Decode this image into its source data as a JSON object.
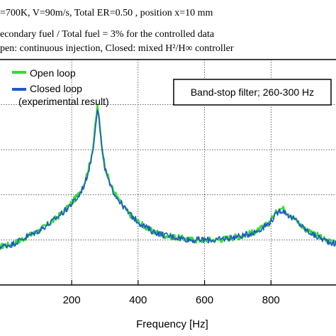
{
  "header_lines": [
    "=700K, V=90m/s, Total ER=0.50 , position x=10 mm",
    "econdary fuel / Total fuel = 3% for the controlled data",
    "pen:  continuous injection, Closed:  mixed H²/H∞ controller"
  ],
  "chart_data": {
    "type": "line",
    "title": "",
    "xlabel": "Frequency [Hz]",
    "ylabel": "",
    "xlim": [
      -20,
      1000
    ],
    "ylim": [
      0,
      1
    ],
    "xticks": [
      200,
      400,
      600,
      800
    ],
    "grid": true,
    "legend": {
      "placement": "top-left",
      "entries": [
        {
          "label": "Open loop",
          "color": "#33dd33"
        },
        {
          "label": "Closed loop",
          "color": "#2255cc"
        }
      ],
      "note": "(experimental result)"
    },
    "annotation": "Band-stop filter; 260-300 Hz",
    "series": [
      {
        "name": "Open loop",
        "color": "#33dd33",
        "x": [
          -20,
          20,
          60,
          100,
          140,
          180,
          220,
          240,
          255,
          265,
          272,
          278,
          285,
          292,
          300,
          315,
          340,
          370,
          400,
          440,
          480,
          520,
          560,
          600,
          640,
          680,
          720,
          760,
          790,
          810,
          825,
          835,
          845,
          860,
          880,
          900,
          930,
          960,
          1000
        ],
        "y": [
          0.17,
          0.18,
          0.21,
          0.24,
          0.28,
          0.33,
          0.4,
          0.46,
          0.54,
          0.62,
          0.72,
          0.8,
          0.7,
          0.6,
          0.53,
          0.45,
          0.38,
          0.32,
          0.28,
          0.24,
          0.22,
          0.21,
          0.2,
          0.2,
          0.2,
          0.21,
          0.22,
          0.24,
          0.27,
          0.31,
          0.34,
          0.34,
          0.33,
          0.31,
          0.28,
          0.25,
          0.23,
          0.2,
          0.18
        ]
      },
      {
        "name": "Closed loop",
        "color": "#2255cc",
        "x": [
          -20,
          20,
          60,
          100,
          140,
          180,
          220,
          240,
          255,
          265,
          272,
          278,
          285,
          292,
          300,
          315,
          340,
          370,
          400,
          440,
          480,
          520,
          560,
          600,
          640,
          680,
          720,
          760,
          790,
          810,
          825,
          835,
          845,
          860,
          880,
          900,
          930,
          960,
          1000
        ],
        "y": [
          0.17,
          0.18,
          0.21,
          0.24,
          0.28,
          0.33,
          0.39,
          0.45,
          0.53,
          0.61,
          0.71,
          0.79,
          0.69,
          0.59,
          0.52,
          0.44,
          0.38,
          0.32,
          0.28,
          0.24,
          0.22,
          0.21,
          0.2,
          0.2,
          0.2,
          0.21,
          0.22,
          0.24,
          0.27,
          0.3,
          0.33,
          0.33,
          0.32,
          0.3,
          0.28,
          0.25,
          0.22,
          0.2,
          0.18
        ]
      }
    ]
  }
}
